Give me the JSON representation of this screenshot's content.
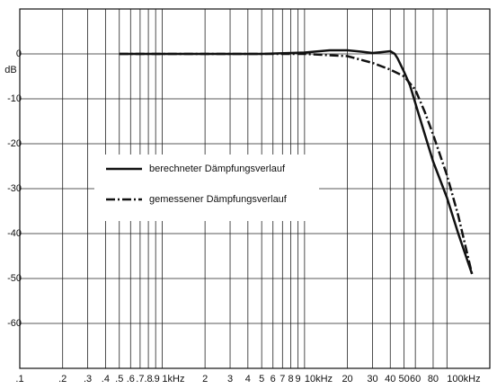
{
  "chart_data": {
    "type": "line",
    "y_label": "dB",
    "xscale": "log",
    "xlim": [
      0.1,
      200
    ],
    "ylim": [
      -70,
      10
    ],
    "xticks": [
      {
        "value": 0.1,
        "label": ".1"
      },
      {
        "value": 0.2,
        "label": ".2"
      },
      {
        "value": 0.3,
        "label": ".3"
      },
      {
        "value": 0.4,
        "label": ".4"
      },
      {
        "value": 0.5,
        "label": ".5"
      },
      {
        "value": 0.6,
        "label": ".6"
      },
      {
        "value": 0.7,
        "label": ".7"
      },
      {
        "value": 0.8,
        "label": ".8"
      },
      {
        "value": 0.9,
        "label": ".9"
      },
      {
        "value": 1,
        "label": "1kHz"
      },
      2,
      3,
      4,
      5,
      6,
      7,
      8,
      9,
      {
        "value": 10,
        "label": "10kHz"
      },
      20,
      30,
      40,
      50,
      60,
      80,
      {
        "value": 100,
        "label": "100kHz"
      }
    ],
    "yticks": [
      0,
      -10,
      -20,
      -30,
      -40,
      -50,
      -60
    ],
    "grid": true,
    "series": [
      {
        "name": "berechneter Dämpfungsverlauf",
        "color": "#111111",
        "dash": "solid",
        "x": [
          0.5,
          1,
          2,
          5,
          10,
          15,
          20,
          25,
          30,
          35,
          40,
          43,
          45,
          50,
          55,
          60,
          70,
          80,
          100,
          120,
          150
        ],
        "values": [
          0,
          0,
          0,
          0,
          0.3,
          0.8,
          0.8,
          0.5,
          0.2,
          0.4,
          0.6,
          0,
          -1,
          -4,
          -7,
          -11,
          -18,
          -24,
          -32,
          -40,
          -49
        ]
      },
      {
        "name": "gemessener Dämpfungsverlauf",
        "color": "#111111",
        "dash": "dashdot",
        "x": [
          0.5,
          1,
          2,
          5,
          10,
          20,
          30,
          40,
          50,
          60,
          70,
          80,
          100,
          120,
          150
        ],
        "values": [
          0,
          0,
          0,
          0,
          0,
          -0.5,
          -2,
          -3.5,
          -5,
          -8,
          -13,
          -18,
          -27,
          -36,
          -49
        ]
      }
    ]
  }
}
